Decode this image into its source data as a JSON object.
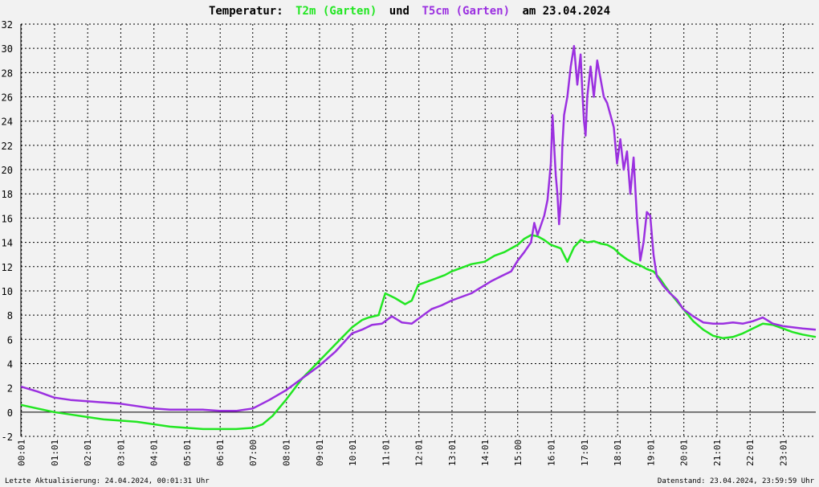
{
  "title": {
    "prefix": "Temperatur:",
    "series1": "T2m (Garten)",
    "joiner": "und",
    "series2": "T5cm (Garten)",
    "suffix": "am 23.04.2024"
  },
  "footer": {
    "left": "Letzte Aktualisierung: 24.04.2024, 00:01:31 Uhr",
    "right": "Datenstand: 23.04.2024, 23:59:59 Uhr"
  },
  "colors": {
    "t2m": "#22e622",
    "t5cm": "#9b30e0",
    "background": "#f2f2f2"
  },
  "chart_data": {
    "type": "line",
    "grid": true,
    "ylim": [
      -2,
      32
    ],
    "xlim": [
      0,
      24
    ],
    "y_ticks": [
      -2,
      0,
      2,
      4,
      6,
      8,
      10,
      12,
      14,
      16,
      18,
      20,
      22,
      24,
      26,
      28,
      30,
      32
    ],
    "x_ticks": [
      {
        "t": 0.017,
        "label": "00:01"
      },
      {
        "t": 1.017,
        "label": "01:01"
      },
      {
        "t": 2.017,
        "label": "02:01"
      },
      {
        "t": 3.017,
        "label": "03:01"
      },
      {
        "t": 4.017,
        "label": "04:01"
      },
      {
        "t": 5.017,
        "label": "05:01"
      },
      {
        "t": 6.017,
        "label": "06:01"
      },
      {
        "t": 7.0,
        "label": "07:00"
      },
      {
        "t": 8.017,
        "label": "08:01"
      },
      {
        "t": 9.017,
        "label": "09:01"
      },
      {
        "t": 10.017,
        "label": "10:01"
      },
      {
        "t": 11.017,
        "label": "11:01"
      },
      {
        "t": 12.017,
        "label": "12:01"
      },
      {
        "t": 13.017,
        "label": "13:01"
      },
      {
        "t": 14.017,
        "label": "14:01"
      },
      {
        "t": 15.0,
        "label": "15:00"
      },
      {
        "t": 16.017,
        "label": "16:01"
      },
      {
        "t": 17.017,
        "label": "17:01"
      },
      {
        "t": 18.017,
        "label": "18:01"
      },
      {
        "t": 19.017,
        "label": "19:01"
      },
      {
        "t": 20.017,
        "label": "20:01"
      },
      {
        "t": 21.017,
        "label": "21:01"
      },
      {
        "t": 22.017,
        "label": "22:01"
      },
      {
        "t": 23.017,
        "label": "23:01"
      }
    ],
    "series": [
      {
        "name": "T2m (Garten)",
        "color": "#22e622",
        "x": [
          0.0,
          0.5,
          1.0,
          1.5,
          2.0,
          2.5,
          3.0,
          3.5,
          4.0,
          4.5,
          5.0,
          5.5,
          6.0,
          6.5,
          7.0,
          7.3,
          7.6,
          8.0,
          8.5,
          9.0,
          9.5,
          10.0,
          10.3,
          10.5,
          10.8,
          11.0,
          11.3,
          11.6,
          11.8,
          12.0,
          12.3,
          12.5,
          12.8,
          13.0,
          13.3,
          13.6,
          13.8,
          14.0,
          14.3,
          14.6,
          14.8,
          15.0,
          15.2,
          15.4,
          15.6,
          15.8,
          16.0,
          16.3,
          16.5,
          16.7,
          16.9,
          17.1,
          17.3,
          17.5,
          17.7,
          17.9,
          18.1,
          18.3,
          18.5,
          18.7,
          18.9,
          19.1,
          19.3,
          19.5,
          19.7,
          20.0,
          20.3,
          20.6,
          20.9,
          21.2,
          21.5,
          21.8,
          22.1,
          22.4,
          22.7,
          23.0,
          23.3,
          23.6,
          24.0
        ],
        "y": [
          0.6,
          0.3,
          0.0,
          -0.2,
          -0.4,
          -0.6,
          -0.7,
          -0.8,
          -1.0,
          -1.2,
          -1.3,
          -1.4,
          -1.4,
          -1.4,
          -1.3,
          -1.0,
          -0.3,
          1.0,
          2.8,
          4.2,
          5.6,
          7.0,
          7.6,
          7.8,
          8.0,
          9.8,
          9.4,
          8.9,
          9.2,
          10.5,
          10.8,
          11.0,
          11.3,
          11.6,
          11.9,
          12.2,
          12.3,
          12.4,
          12.9,
          13.2,
          13.5,
          13.8,
          14.3,
          14.6,
          14.5,
          14.2,
          13.8,
          13.5,
          12.4,
          13.6,
          14.2,
          14.0,
          14.1,
          13.9,
          13.8,
          13.5,
          13.0,
          12.6,
          12.3,
          12.1,
          11.8,
          11.6,
          11.0,
          10.2,
          9.5,
          8.5,
          7.5,
          6.8,
          6.3,
          6.1,
          6.2,
          6.5,
          6.9,
          7.3,
          7.2,
          6.9,
          6.6,
          6.4,
          6.2
        ]
      },
      {
        "name": "T5cm (Garten)",
        "color": "#9b30e0",
        "x": [
          0.0,
          0.5,
          1.0,
          1.5,
          2.0,
          2.5,
          3.0,
          3.5,
          4.0,
          4.5,
          5.0,
          5.5,
          6.0,
          6.5,
          7.0,
          7.5,
          8.0,
          8.5,
          9.0,
          9.5,
          10.0,
          10.3,
          10.6,
          10.9,
          11.2,
          11.5,
          11.8,
          12.1,
          12.4,
          12.7,
          13.0,
          13.3,
          13.6,
          13.9,
          14.2,
          14.5,
          14.8,
          15.0,
          15.2,
          15.4,
          15.5,
          15.6,
          15.7,
          15.8,
          15.9,
          16.0,
          16.05,
          16.1,
          16.15,
          16.2,
          16.25,
          16.3,
          16.35,
          16.4,
          16.5,
          16.6,
          16.7,
          16.8,
          16.9,
          16.95,
          17.0,
          17.05,
          17.1,
          17.2,
          17.3,
          17.4,
          17.5,
          17.6,
          17.7,
          17.8,
          17.9,
          18.0,
          18.1,
          18.2,
          18.3,
          18.4,
          18.5,
          18.6,
          18.7,
          18.8,
          18.9,
          19.0,
          19.1,
          19.2,
          19.4,
          19.6,
          19.8,
          20.0,
          20.3,
          20.6,
          20.9,
          21.2,
          21.5,
          21.8,
          22.1,
          22.4,
          22.7,
          23.0,
          23.3,
          23.6,
          24.0
        ],
        "y": [
          2.1,
          1.7,
          1.2,
          1.0,
          0.9,
          0.8,
          0.7,
          0.5,
          0.3,
          0.2,
          0.2,
          0.2,
          0.1,
          0.1,
          0.3,
          1.0,
          1.8,
          2.8,
          3.8,
          5.0,
          6.5,
          6.8,
          7.2,
          7.3,
          7.9,
          7.4,
          7.3,
          7.9,
          8.5,
          8.8,
          9.2,
          9.5,
          9.8,
          10.3,
          10.8,
          11.2,
          11.6,
          12.5,
          13.2,
          14.0,
          15.6,
          14.6,
          15.4,
          16.2,
          17.5,
          20.5,
          24.5,
          22.0,
          19.5,
          18.0,
          15.5,
          17.5,
          22.0,
          24.5,
          26.0,
          28.5,
          30.2,
          27.0,
          29.5,
          26.5,
          24.0,
          22.8,
          26.0,
          28.5,
          26.0,
          29.0,
          27.5,
          26.0,
          25.5,
          24.5,
          23.5,
          20.5,
          22.5,
          20.0,
          21.5,
          18.0,
          21.0,
          16.0,
          12.5,
          14.0,
          16.5,
          16.2,
          13.0,
          11.2,
          10.4,
          9.8,
          9.3,
          8.5,
          7.9,
          7.4,
          7.3,
          7.3,
          7.4,
          7.3,
          7.5,
          7.8,
          7.3,
          7.1,
          7.0,
          6.9,
          6.8
        ]
      }
    ]
  }
}
